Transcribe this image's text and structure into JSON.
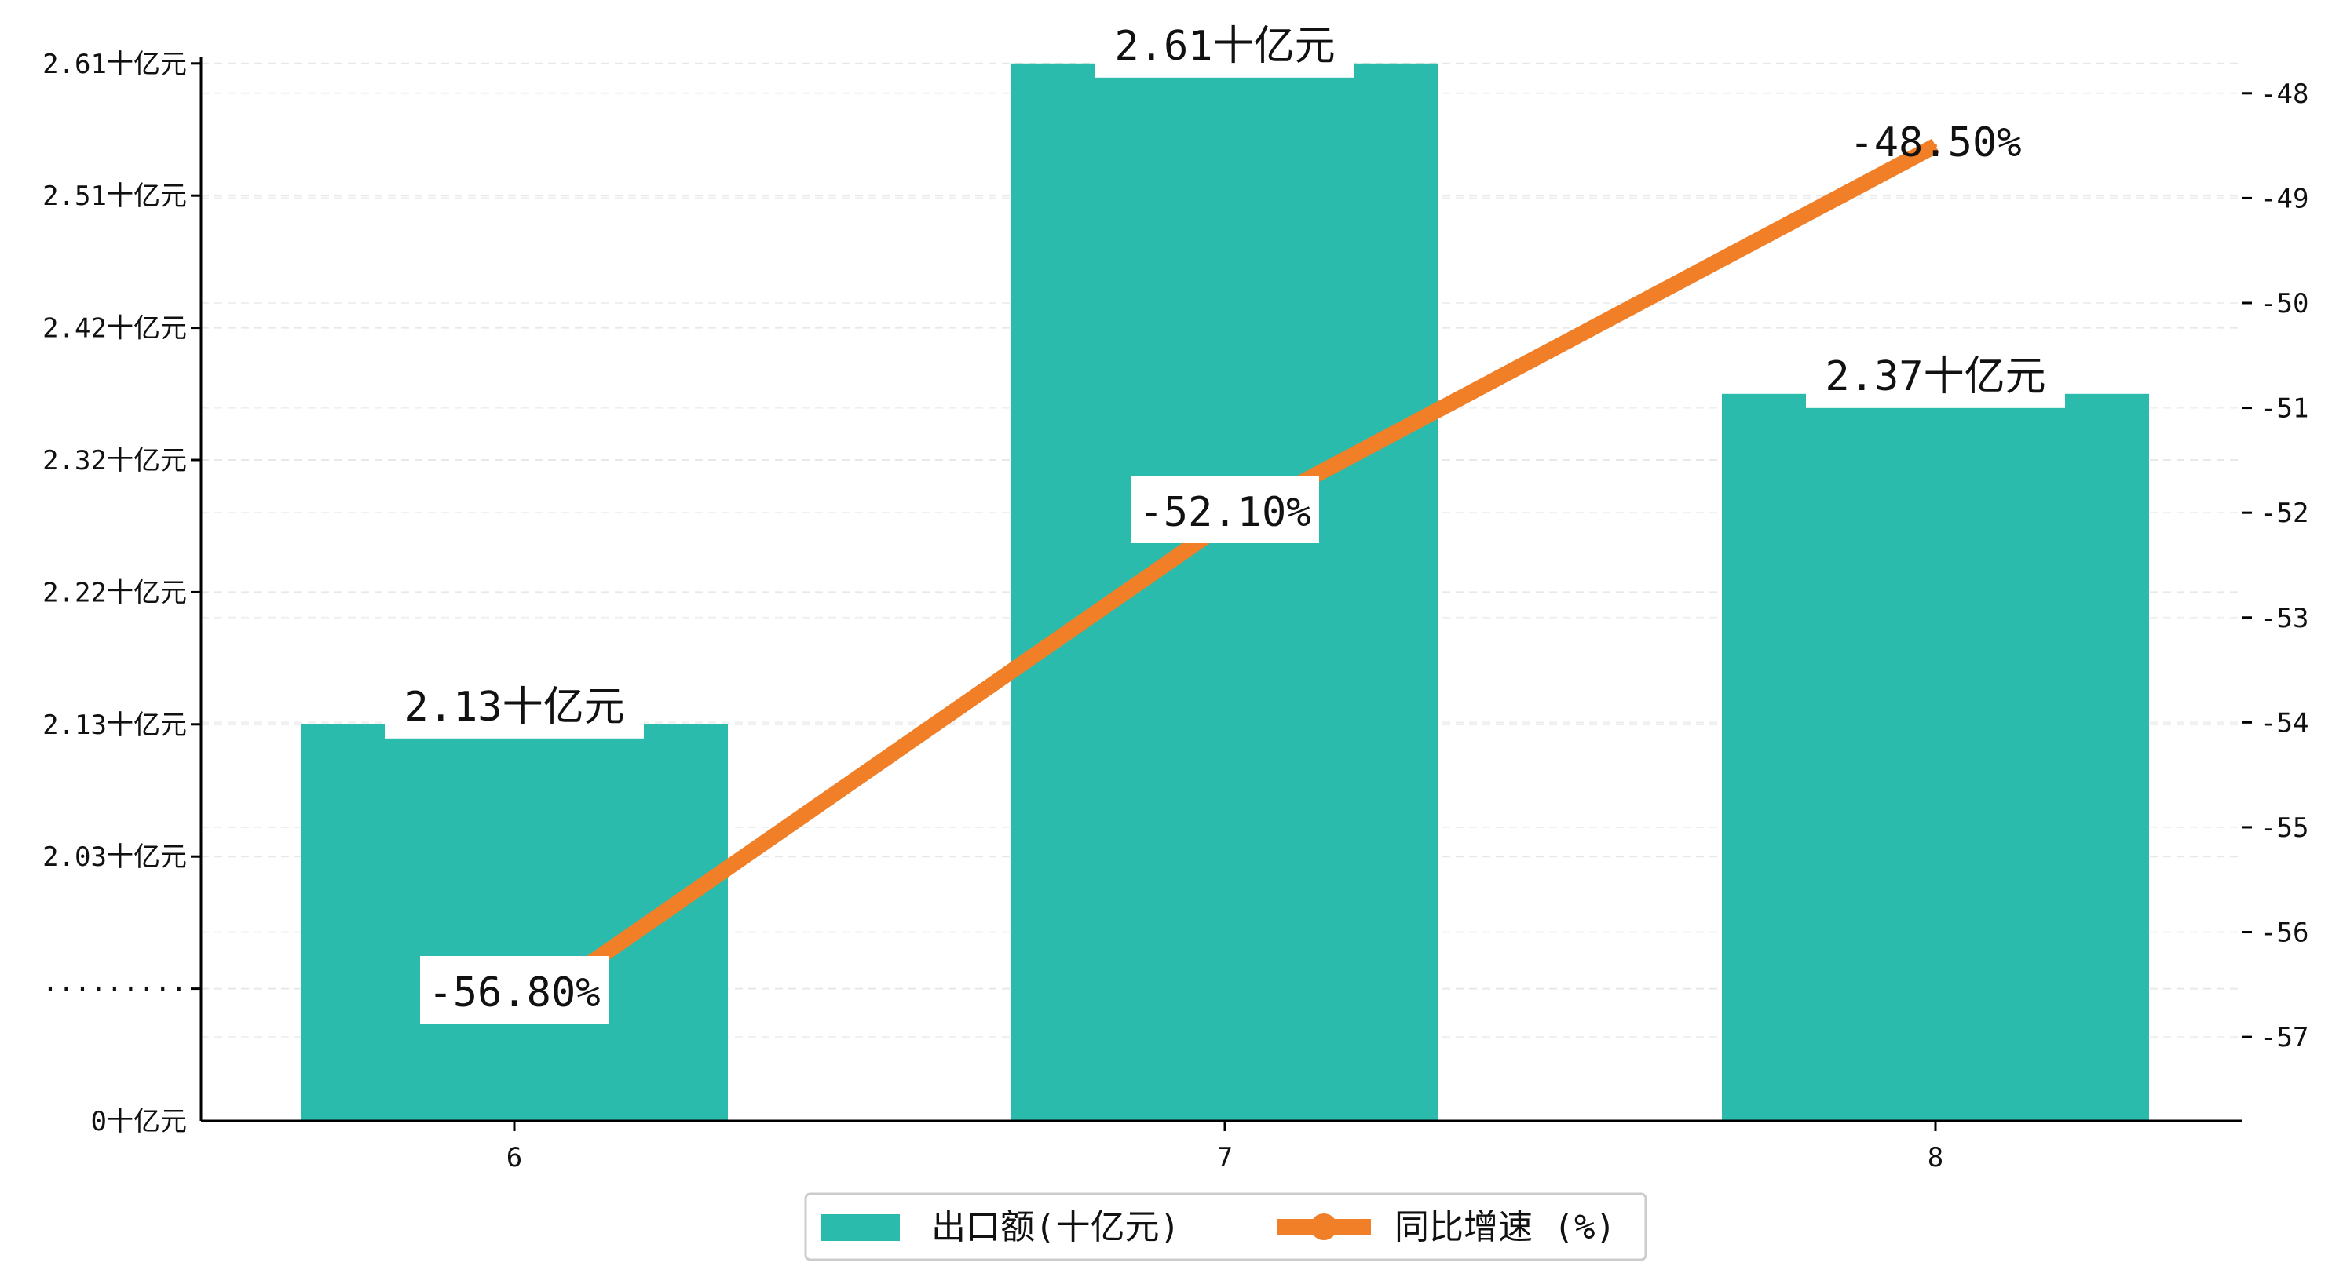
{
  "chart_data": {
    "type": "bar",
    "categories": [
      "6",
      "7",
      "8"
    ],
    "series": [
      {
        "name": "出口额(十亿元)",
        "kind": "bar",
        "axis": "left",
        "color": "#2bbbad",
        "values": [
          2.13,
          2.61,
          2.37
        ],
        "labels": [
          "2.13十亿元",
          "2.61十亿元",
          "2.37十亿元"
        ]
      },
      {
        "name": "同比增速 (%)",
        "kind": "line",
        "axis": "right",
        "color": "#f07f27",
        "values": [
          -56.8,
          -52.1,
          -48.5
        ],
        "labels": [
          "-56.80%",
          "-52.10%",
          "-48.50%"
        ]
      }
    ],
    "y_left": {
      "ticks": [
        0,
        1.93,
        2.03,
        2.13,
        2.22,
        2.32,
        2.42,
        2.51,
        2.61
      ],
      "tick_labels": [
        "0十亿元",
        "·········",
        "2.03十亿元",
        "2.13十亿元",
        "2.22十亿元",
        "2.32十亿元",
        "2.42十亿元",
        "2.51十亿元",
        "2.61十亿元"
      ],
      "broken": true
    },
    "y_right": {
      "ticks": [
        -57,
        -56,
        -55,
        -54,
        -53,
        -52,
        -51,
        -50,
        -49,
        -48
      ],
      "tick_labels": [
        "-57",
        "-56",
        "-55",
        "-54",
        "-53",
        "-52",
        "-51",
        "-50",
        "-49",
        "-48"
      ],
      "range": [
        -57.8,
        -47.5
      ]
    },
    "grid": true,
    "legend_position": "bottom-center"
  }
}
